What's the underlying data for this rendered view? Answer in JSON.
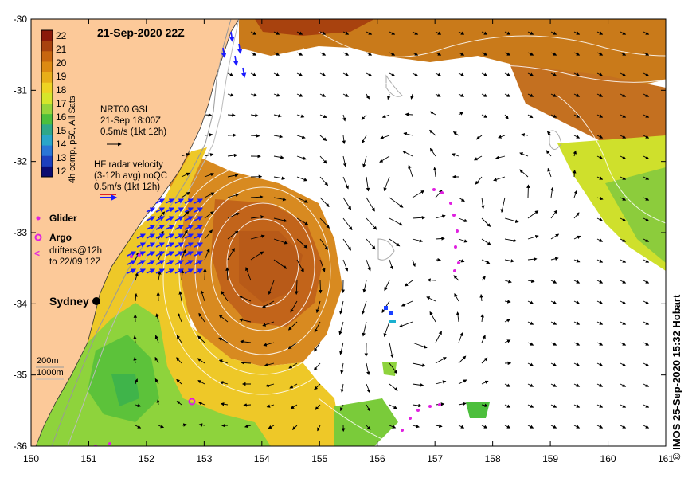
{
  "map": {
    "title": "21-Sep-2020 22Z",
    "credit": "IMOS 25-Sep-2020 15:32 Hobart",
    "copyright_symbol": "©",
    "lon_ticks": [
      "150",
      "151",
      "152",
      "153",
      "154",
      "155",
      "156",
      "157",
      "158",
      "159",
      "160",
      "161"
    ],
    "lat_ticks": [
      "-30",
      "-31",
      "-32",
      "-33",
      "-34",
      "-35",
      "-36"
    ],
    "lon_range": [
      150,
      161
    ],
    "lat_range": [
      -36,
      -30
    ]
  },
  "colorbar": {
    "ticks": [
      "22",
      "21",
      "20",
      "19",
      "18",
      "17",
      "16",
      "15",
      "14",
      "13",
      "12"
    ],
    "label": "4h comp, p50, All Sats",
    "colors": [
      "#8b1a0a",
      "#a8420e",
      "#c8660f",
      "#dd8a12",
      "#e8ae18",
      "#eed322",
      "#d6e62a",
      "#96d43a",
      "#4cbf3c",
      "#2fa889",
      "#2aa6c9",
      "#2a76d6",
      "#1d3fbd",
      "#0b0b70"
    ]
  },
  "legend": {
    "gsl_line1": "NRT00 GSL",
    "gsl_line2": "21-Sep 18:00Z",
    "gsl_line3": "0.5m/s (1kt 12h)",
    "hf_line1": "HF radar velocity",
    "hf_line2": "(3-12h avg) noQC",
    "hf_line3": "0.5m/s (1kt 12h)",
    "glider": "Glider",
    "argo": "Argo",
    "drifters_line1": "drifters@12h",
    "drifters_line2": "to 22/09 12Z",
    "city": "Sydney",
    "depth_200": "200m",
    "depth_1000": "1000m"
  },
  "colors": {
    "land": "#fcc999",
    "glider": "#e020e0",
    "hf_radar": "#1a1aff",
    "contour": "#ffffff",
    "bathy": "#999999"
  }
}
